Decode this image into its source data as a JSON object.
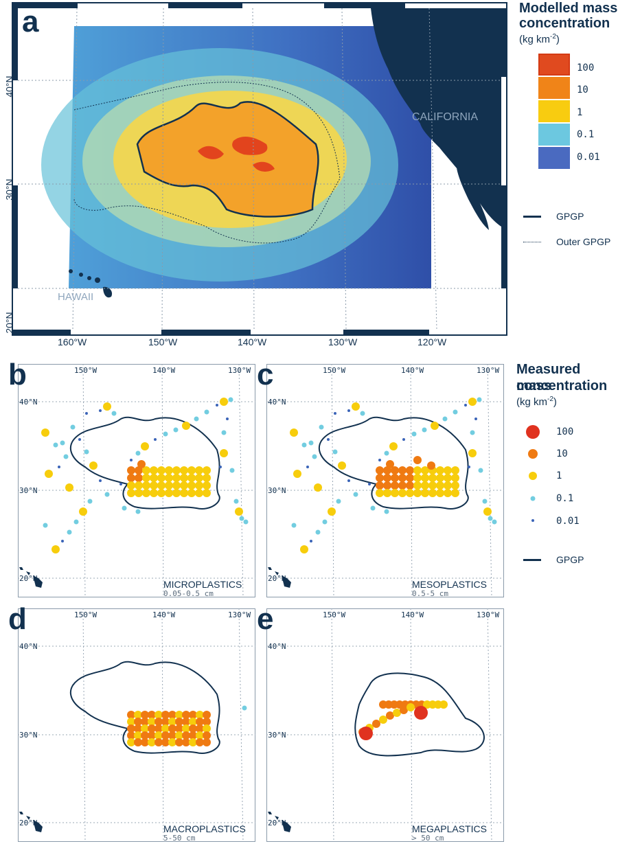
{
  "panel_a": {
    "label": "a",
    "lon_ticks": [
      "160°W",
      "150°W",
      "140°W",
      "130°W",
      "120°W"
    ],
    "lat_ticks": [
      "40°N",
      "30°N",
      "20°N"
    ],
    "place_labels": {
      "california": "CALIFORNIA",
      "hawaii": "HAWAII"
    }
  },
  "legend_modelled": {
    "title_line1": "Modelled mass",
    "title_line2": "concentration",
    "unit": "(kg km",
    "unit_sup": "-2",
    "unit_close": ")",
    "classes": [
      {
        "label": "100",
        "color": "#e04a1f"
      },
      {
        "label": "10",
        "color": "#f08418"
      },
      {
        "label": "1",
        "color": "#f8cc10"
      },
      {
        "label": "0.1",
        "color": "#6cc8e0"
      },
      {
        "label": "0.01",
        "color": "#4a6ac0"
      }
    ],
    "line_gpgp": "GPGP",
    "line_outer": "Outer GPGP"
  },
  "legend_measured": {
    "title_line1": "Measured mass",
    "title_line2": "concentration",
    "unit": "(kg km",
    "unit_sup": "-2",
    "unit_close": ")",
    "classes": [
      {
        "label": "100",
        "color": "#e0321f"
      },
      {
        "label": "10",
        "color": "#ef7a12"
      },
      {
        "label": "1",
        "color": "#f7cd0c"
      },
      {
        "label": "0.1",
        "color": "#72cde0"
      },
      {
        "label": "0.01",
        "color": "#3b64b8"
      }
    ],
    "line_gpgp": "GPGP"
  },
  "small_panels": {
    "lon_ticks": [
      "150°W",
      "140°W",
      "130°W"
    ],
    "lat_ticks": [
      "40°N",
      "30°N",
      "20°N"
    ],
    "panels": [
      {
        "label": "b",
        "title": "MICROPLASTICS",
        "size": "0.05-0.5 cm"
      },
      {
        "label": "c",
        "title": "MESOPLASTICS",
        "size": "0.5-5 cm"
      },
      {
        "label": "d",
        "title": "MACROPLASTICS",
        "size": "5-50 cm"
      },
      {
        "label": "e",
        "title": "MEGAPLASTICS",
        "size": "> 50 cm"
      }
    ]
  },
  "colors": {
    "navy": "#12314f",
    "land": "#12314f",
    "ocean_low": "#2f55b0",
    "ocean_mid": "#7dd0d8",
    "gpgp_core": "#f39a1e",
    "gpgp_hot": "#e2401d"
  }
}
